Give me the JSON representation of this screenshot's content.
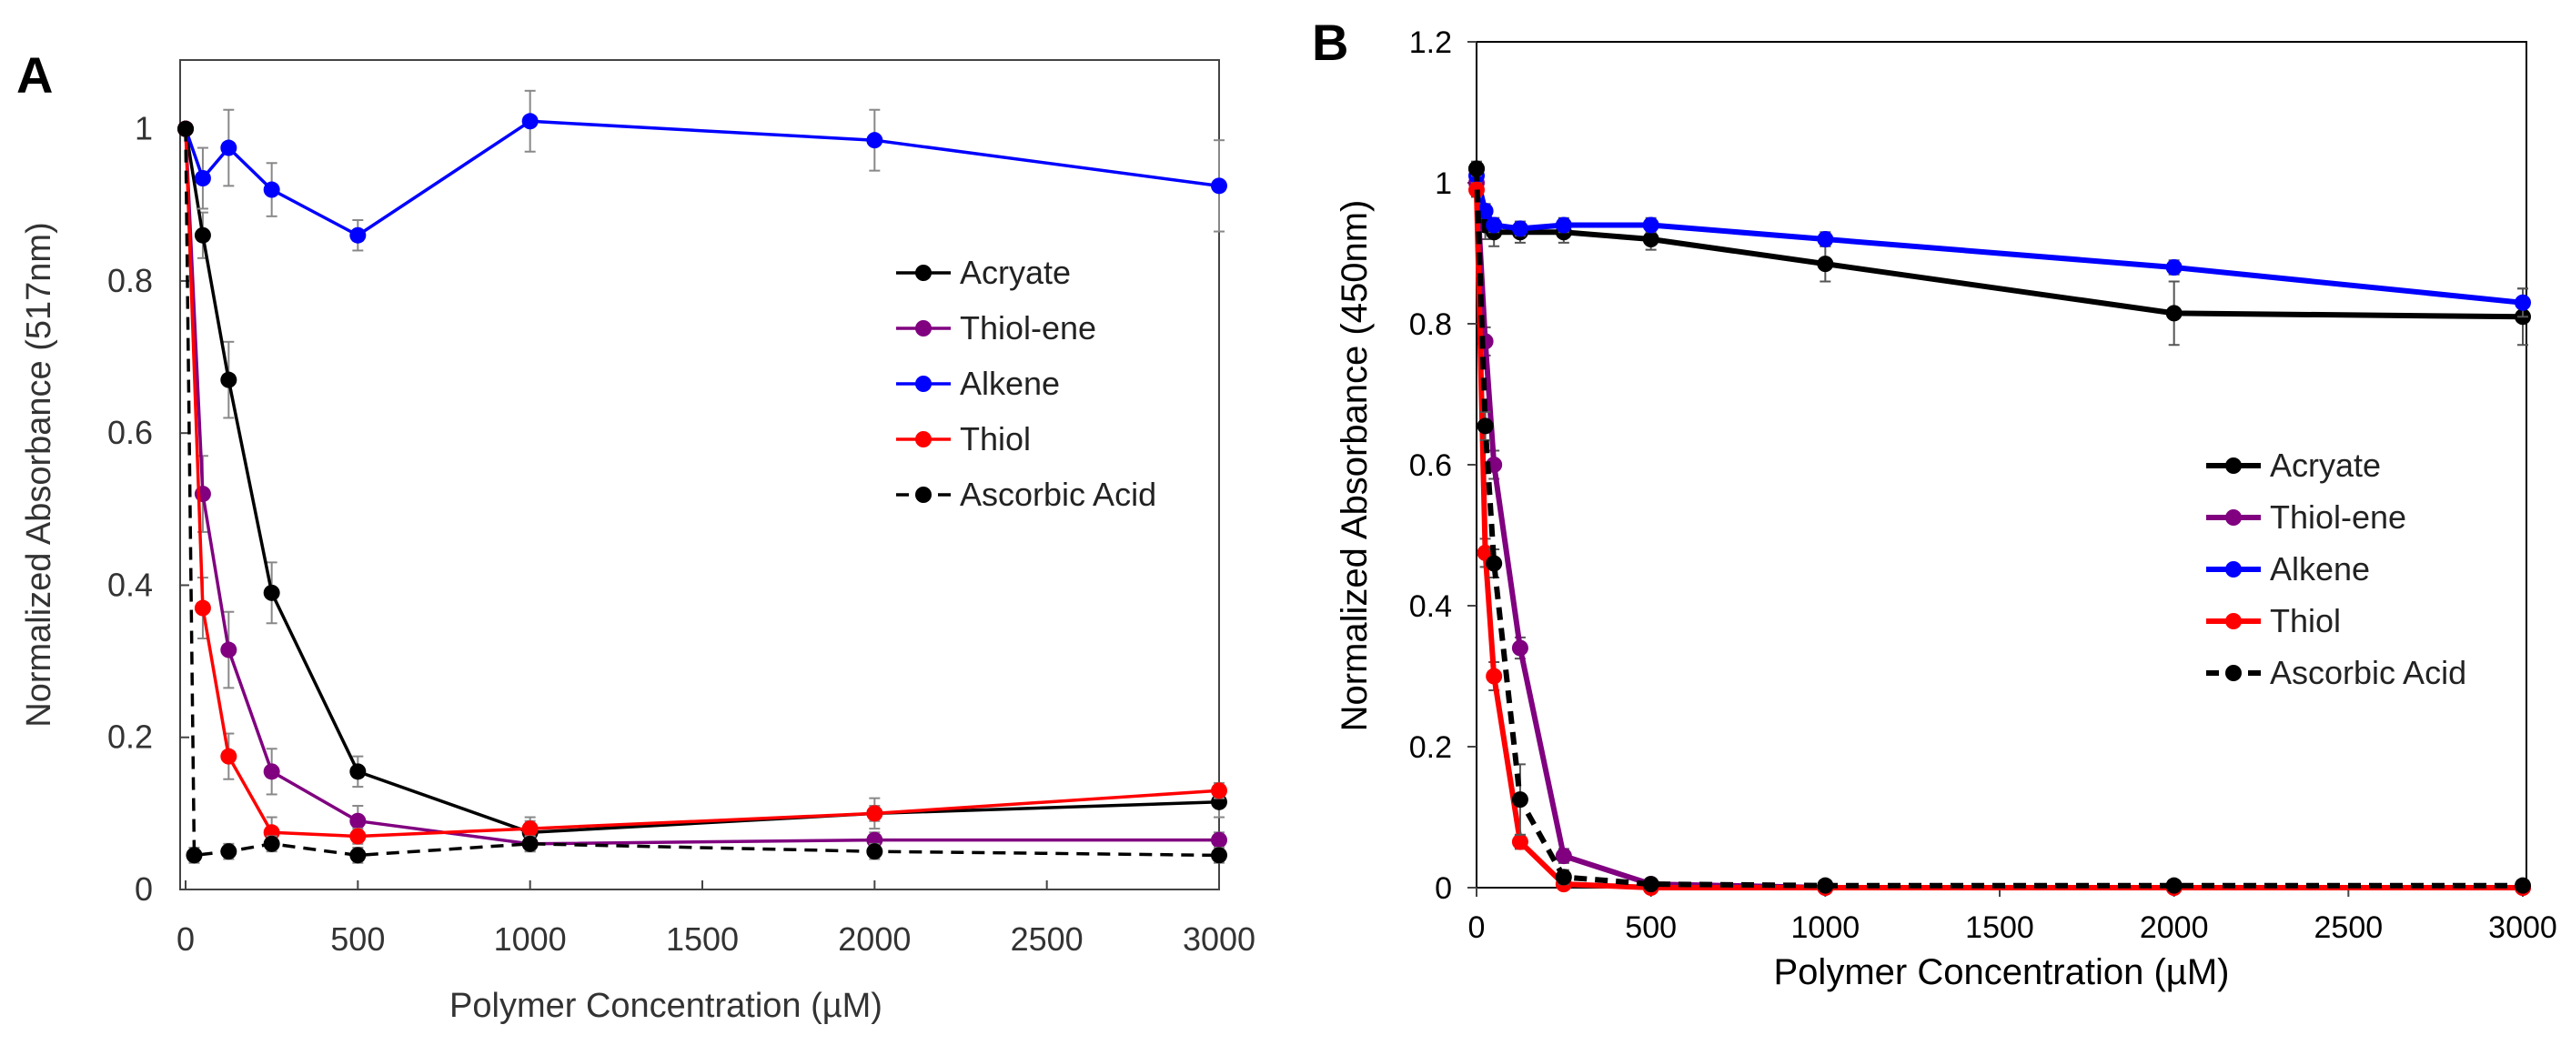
{
  "chart_data": [
    {
      "panel_label": "A",
      "type": "line",
      "xlabel": "Polymer Concentration (µM)",
      "ylabel": "Normalized Absorbance (517nm)",
      "xlim": [
        0,
        3000
      ],
      "ylim": [
        0,
        1.1
      ],
      "x_ticks": [
        "0",
        "500",
        "1000",
        "1500",
        "2000",
        "2500",
        "3000"
      ],
      "y_ticks": [
        "0",
        "0.2",
        "0.4",
        "0.6",
        "0.8",
        "1"
      ],
      "legend_position": "center-right",
      "series": [
        {
          "name": "Acryate",
          "color": "#000000",
          "dashed": false,
          "x": [
            0,
            50,
            125,
            250,
            500,
            1000,
            2000,
            3000
          ],
          "y": [
            1.0,
            0.86,
            0.67,
            0.39,
            0.155,
            0.075,
            0.1,
            0.115
          ],
          "err": [
            0.0,
            0.03,
            0.05,
            0.04,
            0.02,
            0.02,
            0.02,
            0.02
          ]
        },
        {
          "name": "Thiol-ene",
          "color": "#800080",
          "dashed": false,
          "x": [
            0,
            50,
            125,
            250,
            500,
            1000,
            2000,
            3000
          ],
          "y": [
            1.0,
            0.52,
            0.315,
            0.155,
            0.09,
            0.06,
            0.065,
            0.065
          ],
          "err": [
            0.0,
            0.05,
            0.05,
            0.03,
            0.02,
            0.01,
            0.01,
            0.01
          ]
        },
        {
          "name": "Alkene",
          "color": "#0000ff",
          "dashed": false,
          "x": [
            0,
            50,
            125,
            250,
            500,
            1000,
            2000,
            3000
          ],
          "y": [
            1.0,
            0.935,
            0.975,
            0.92,
            0.86,
            1.01,
            0.985,
            0.925
          ],
          "err": [
            0.0,
            0.04,
            0.05,
            0.035,
            0.02,
            0.04,
            0.04,
            0.06
          ]
        },
        {
          "name": "Thiol",
          "color": "#ff0000",
          "dashed": false,
          "x": [
            0,
            50,
            125,
            250,
            500,
            1000,
            2000,
            3000
          ],
          "y": [
            1.0,
            0.37,
            0.175,
            0.075,
            0.07,
            0.08,
            0.1,
            0.13
          ],
          "err": [
            0.0,
            0.04,
            0.03,
            0.02,
            0.01,
            0.01,
            0.01,
            0.01
          ]
        },
        {
          "name": "Ascorbic Acid",
          "color": "#000000",
          "dashed": true,
          "x": [
            0,
            25,
            125,
            250,
            500,
            1000,
            2000,
            3000
          ],
          "y": [
            1.0,
            0.045,
            0.05,
            0.06,
            0.045,
            0.06,
            0.05,
            0.045
          ],
          "err": [
            0.0,
            0.01,
            0.01,
            0.01,
            0.01,
            0.01,
            0.01,
            0.01
          ]
        }
      ]
    },
    {
      "panel_label": "B",
      "type": "line",
      "xlabel": "Polymer Concentration (µM)",
      "ylabel": "Normalized Absorbance (450nm)",
      "xlim": [
        0,
        3000
      ],
      "ylim": [
        0,
        1.2
      ],
      "x_ticks": [
        "0",
        "500",
        "1000",
        "1500",
        "2000",
        "2500",
        "3000"
      ],
      "y_ticks": [
        "0",
        "0.2",
        "0.4",
        "0.6",
        "0.8",
        "1",
        "1.2"
      ],
      "legend_position": "center-right",
      "series": [
        {
          "name": "Acryate",
          "color": "#000000",
          "dashed": false,
          "x": [
            0,
            25,
            50,
            125,
            250,
            500,
            1000,
            2000,
            3000
          ],
          "y": [
            1.02,
            0.94,
            0.93,
            0.93,
            0.93,
            0.92,
            0.885,
            0.815,
            0.81
          ],
          "err": [
            0.01,
            0.02,
            0.02,
            0.015,
            0.015,
            0.015,
            0.025,
            0.045,
            0.04
          ]
        },
        {
          "name": "Thiol-ene",
          "color": "#800080",
          "dashed": false,
          "x": [
            0,
            25,
            50,
            125,
            250,
            500,
            1000,
            2000,
            3000
          ],
          "y": [
            1.0,
            0.775,
            0.6,
            0.34,
            0.045,
            0.005,
            0.0,
            0.0,
            0.0
          ],
          "err": [
            0.01,
            0.02,
            0.02,
            0.015,
            0.01,
            0.005,
            0.003,
            0.003,
            0.003
          ]
        },
        {
          "name": "Alkene",
          "color": "#0000ff",
          "dashed": false,
          "x": [
            0,
            25,
            50,
            125,
            250,
            500,
            1000,
            2000,
            3000
          ],
          "y": [
            1.01,
            0.96,
            0.94,
            0.935,
            0.94,
            0.94,
            0.92,
            0.88,
            0.83
          ],
          "err": [
            0.01,
            0.01,
            0.01,
            0.01,
            0.01,
            0.01,
            0.01,
            0.01,
            0.02
          ]
        },
        {
          "name": "Thiol",
          "color": "#ff0000",
          "dashed": false,
          "x": [
            0,
            25,
            50,
            125,
            250,
            500,
            1000,
            2000,
            3000
          ],
          "y": [
            0.99,
            0.475,
            0.3,
            0.065,
            0.005,
            0.0,
            0.0,
            0.0,
            0.0
          ],
          "err": [
            0.01,
            0.02,
            0.02,
            0.01,
            0.005,
            0.003,
            0.003,
            0.003,
            0.003
          ]
        },
        {
          "name": "Ascorbic Acid",
          "color": "#000000",
          "dashed": true,
          "x": [
            0,
            25,
            50,
            125,
            250,
            500,
            1000,
            2000,
            3000
          ],
          "y": [
            1.02,
            0.655,
            0.46,
            0.125,
            0.015,
            0.005,
            0.003,
            0.003,
            0.003
          ],
          "err": [
            0.01,
            0.02,
            0.02,
            0.05,
            0.01,
            0.005,
            0.003,
            0.003,
            0.003
          ]
        }
      ]
    }
  ]
}
